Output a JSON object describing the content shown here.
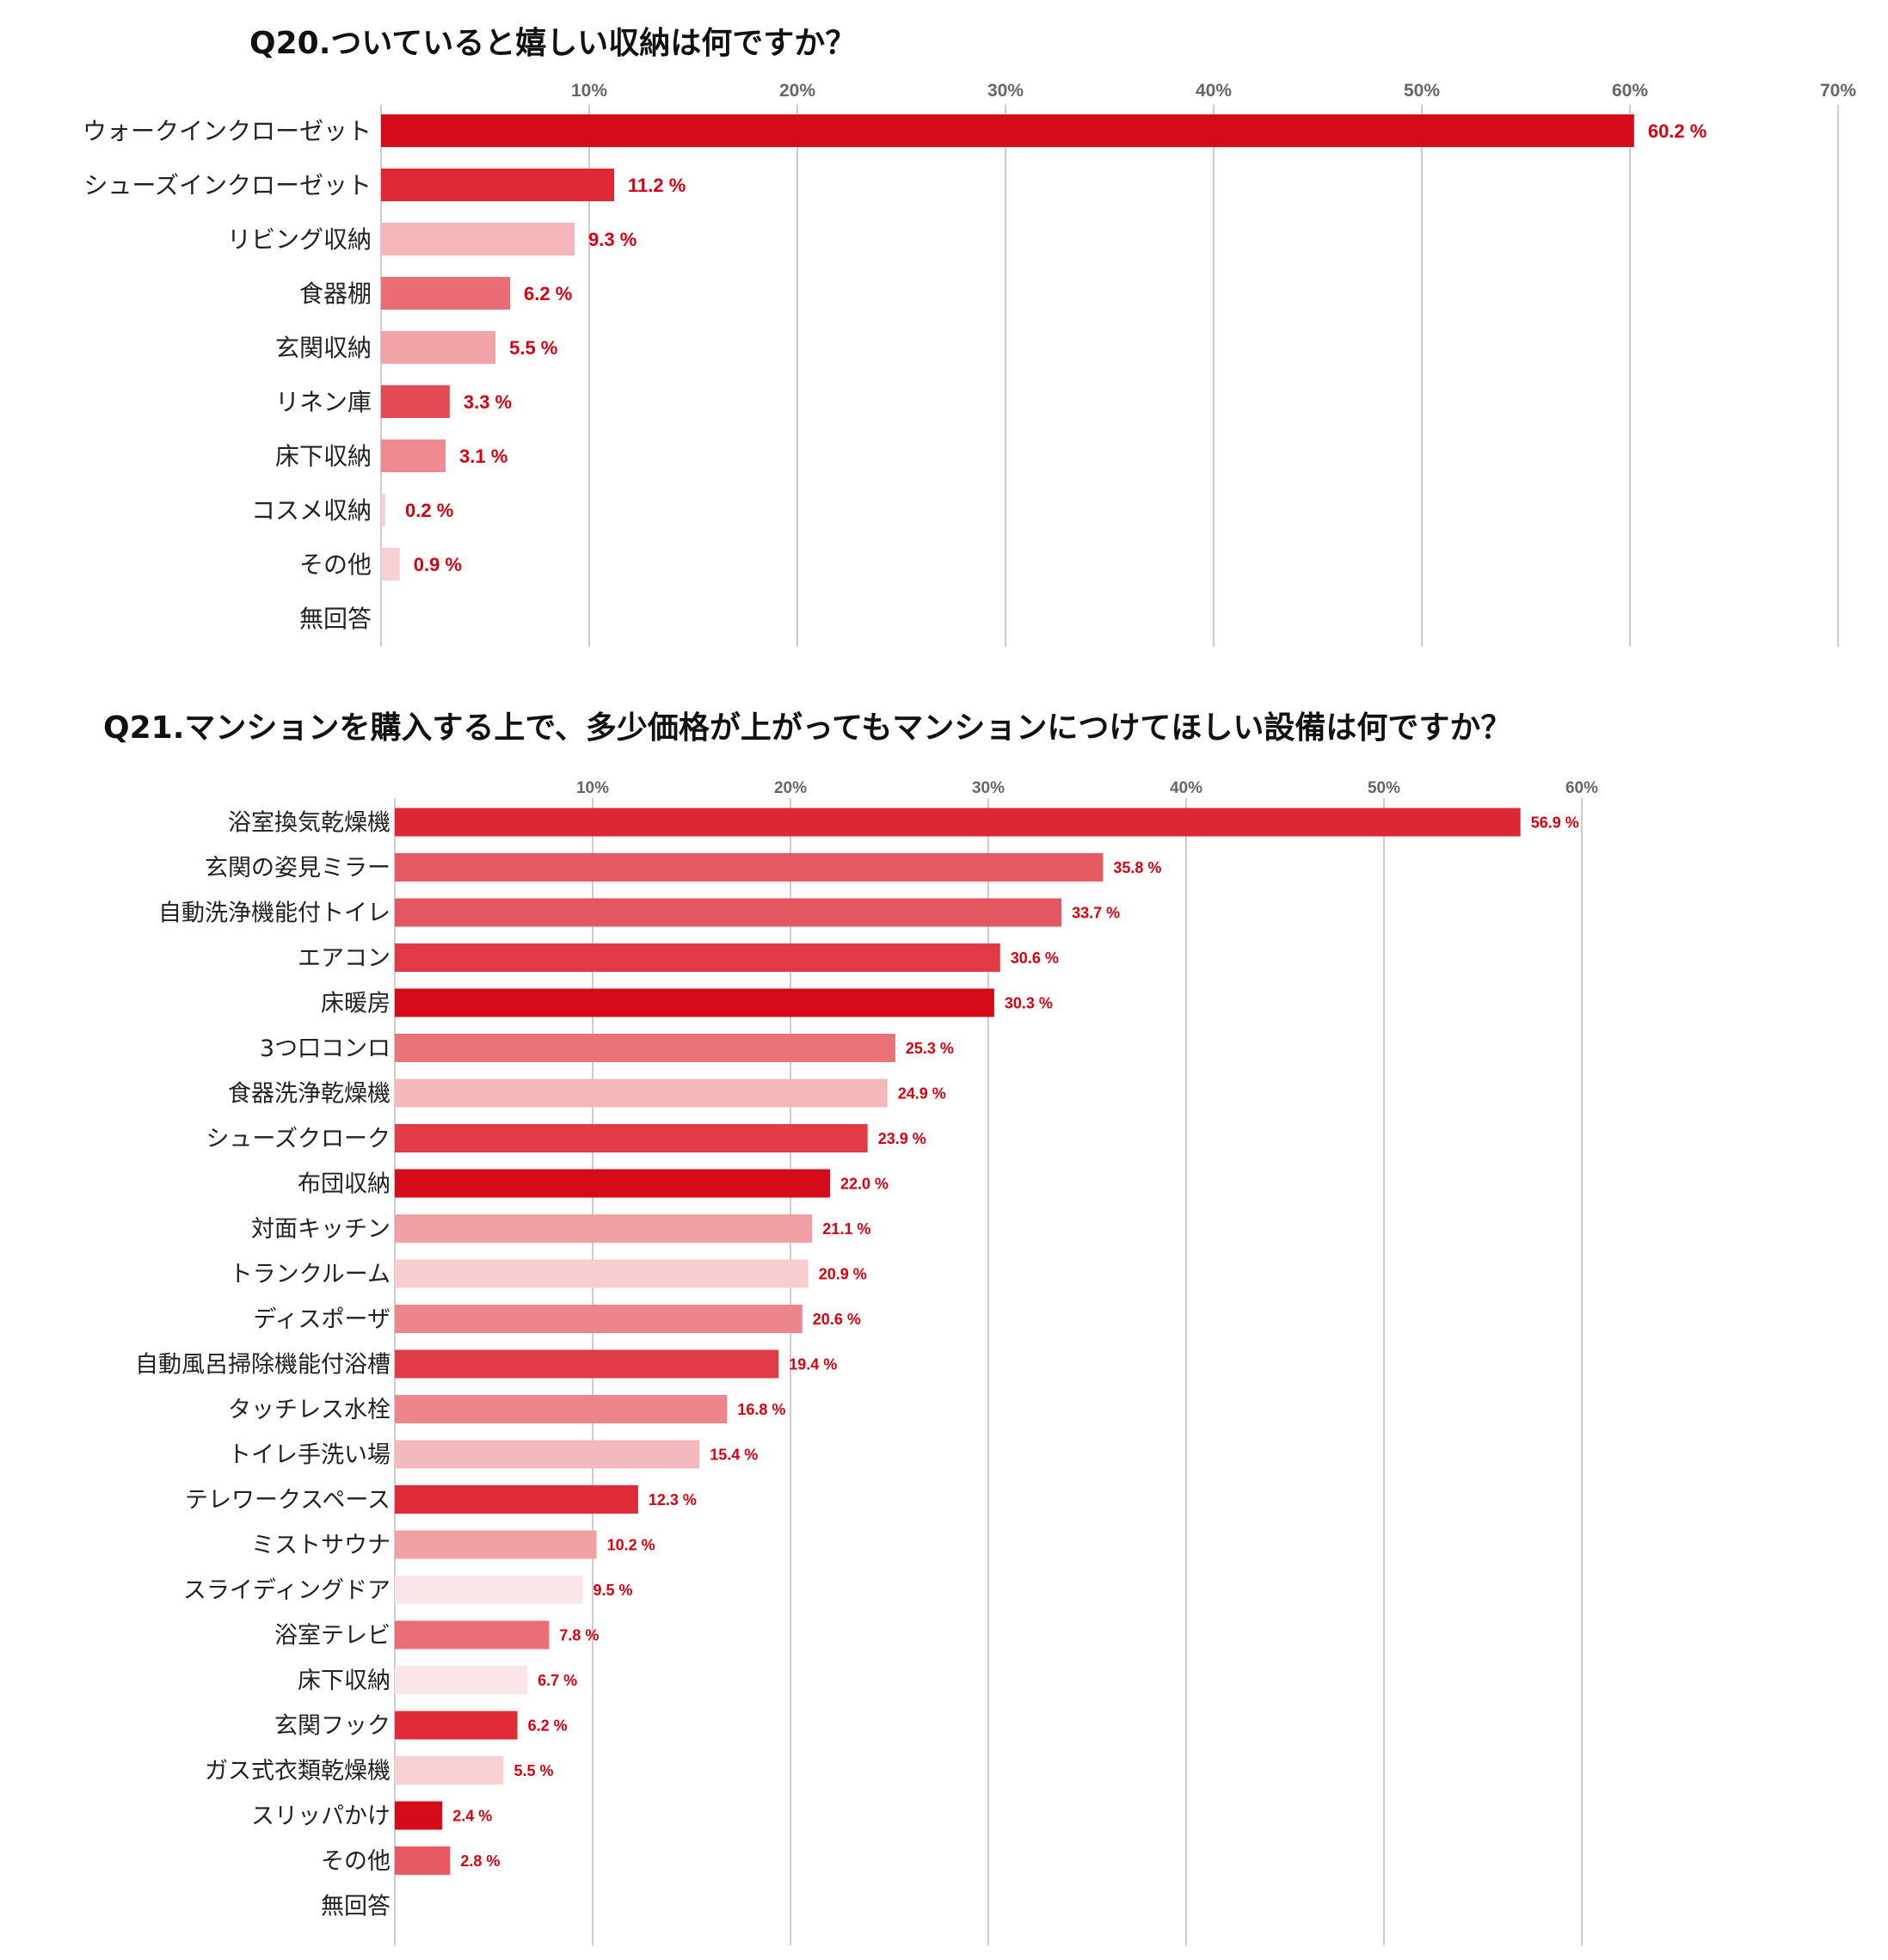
{
  "chart_data": [
    {
      "type": "bar",
      "orientation": "horizontal",
      "title": "Q20.ついていると嬉しい収納は何ですか？",
      "xlim": [
        0,
        70
      ],
      "ticks": [
        10,
        20,
        30,
        40,
        50,
        60,
        70
      ],
      "tick_suffix": "%",
      "value_suffix": " %",
      "grid": true,
      "value_label_color": "#d7000f",
      "categories": [
        "ウォークインクローゼット",
        "シューズインクローゼット",
        "リビング収納",
        "食器棚",
        "玄関収納",
        "リネン庫",
        "床下収納",
        "コスメ収納",
        "その他",
        "無回答"
      ],
      "values": [
        60.2,
        11.2,
        9.3,
        6.2,
        5.5,
        3.3,
        3.1,
        0.2,
        0.9,
        null
      ],
      "colors": [
        "#d50b1a",
        "#e02736",
        "#f5b6ba",
        "#ea6d73",
        "#f1a3a8",
        "#e44a55",
        "#ee8a90",
        "#f8cfd2",
        "#f8d0d3",
        "#ffffff"
      ]
    },
    {
      "type": "bar",
      "orientation": "horizontal",
      "title": "Q21.マンションを購入する上で、多少価格が上がってもマンションにつけてほしい設備は何ですか？",
      "xlim": [
        0,
        65
      ],
      "ticks": [
        10,
        20,
        30,
        40,
        50,
        60
      ],
      "tick_suffix": "%",
      "value_suffix": " %",
      "grid": true,
      "value_label_color": "#d7000f",
      "categories": [
        "浴室換気乾燥機",
        "玄関の姿見ミラー",
        "自動洗浄機能付トイレ",
        "エアコン",
        "床暖房",
        "3つ口コンロ",
        "食器洗浄乾燥機",
        "シューズクローク",
        "布団収納",
        "対面キッチン",
        "トランクルーム",
        "ディスポーザ",
        "自動風呂掃除機能付浴槽",
        "タッチレス水栓",
        "トイレ手洗い場",
        "テレワークスペース",
        "ミストサウナ",
        "スライディングドア",
        "浴室テレビ",
        "床下収納",
        "玄関フック",
        "ガス式衣類乾燥機",
        "スリッパかけ",
        "その他",
        "無回答"
      ],
      "values": [
        56.9,
        35.8,
        33.7,
        30.6,
        30.3,
        25.3,
        24.9,
        23.9,
        22.0,
        21.1,
        20.9,
        20.6,
        19.4,
        16.8,
        15.4,
        12.3,
        10.2,
        9.5,
        7.8,
        6.7,
        6.2,
        5.5,
        2.4,
        2.8,
        null
      ],
      "colors": [
        "#df2634",
        "#e55a63",
        "#e35860",
        "#e03a46",
        "#d50b1a",
        "#ea7279",
        "#f4b8bb",
        "#e23c47",
        "#d50b1a",
        "#f1a0a5",
        "#f7cdd0",
        "#ec868c",
        "#e13b47",
        "#ed868c",
        "#f4b9bc",
        "#e02a37",
        "#f1a1a6",
        "#fbe6e7",
        "#ea6f75",
        "#fbe6e7",
        "#e02a37",
        "#f8d0d3",
        "#d50b1a",
        "#e55a63",
        "#ffffff"
      ]
    }
  ]
}
